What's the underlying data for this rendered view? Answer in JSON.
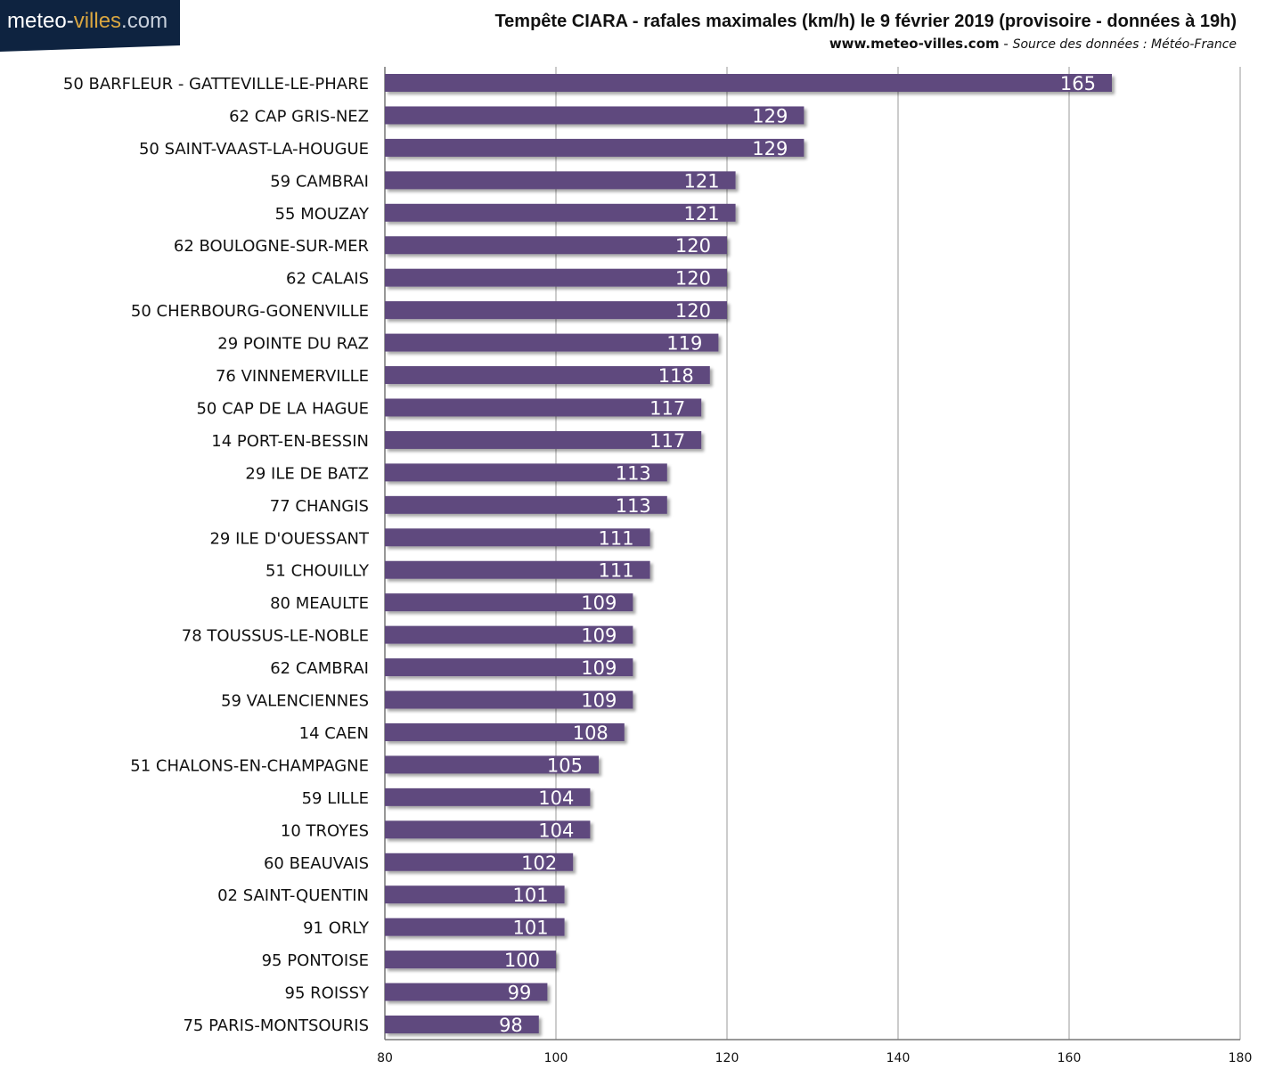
{
  "logo": {
    "part1": "meteo-",
    "part2": "villes",
    "part3": ".com"
  },
  "header": {
    "site": "www.meteo-villes.com",
    "separator": " - ",
    "source": "Source des données : Météo-France"
  },
  "chart_data": {
    "type": "bar",
    "orientation": "horizontal",
    "title": "Tempête CIARA - rafales maximales (km/h) le 9 février 2019 (provisoire - données à 19h)",
    "xlabel": "",
    "ylabel": "",
    "xlim": [
      80,
      180
    ],
    "xticks": [
      80,
      100,
      120,
      140,
      160,
      180
    ],
    "grid": true,
    "bar_color": "#5e4a7e",
    "categories": [
      "50 BARFLEUR - GATTEVILLE-LE-PHARE",
      "62 CAP GRIS-NEZ",
      "50 SAINT-VAAST-LA-HOUGUE",
      "59 CAMBRAI",
      "55 MOUZAY",
      "62 BOULOGNE-SUR-MER",
      "62 CALAIS",
      "50 CHERBOURG-GONENVILLE",
      "29 POINTE DU RAZ",
      "76 VINNEMERVILLE",
      "50 CAP DE LA HAGUE",
      "14 PORT-EN-BESSIN",
      "29 ILE DE BATZ",
      "77 CHANGIS",
      "29 ILE D'OUESSANT",
      "51 CHOUILLY",
      "80 MEAULTE",
      "78 TOUSSUS-LE-NOBLE",
      "62 CAMBRAI",
      "59 VALENCIENNES",
      "14 CAEN",
      "51 CHALONS-EN-CHAMPAGNE",
      "59 LILLE",
      "10 TROYES",
      "60 BEAUVAIS",
      "02 SAINT-QUENTIN",
      "91 ORLY",
      "95 PONTOISE",
      "95 ROISSY",
      "75 PARIS-MONTSOURIS"
    ],
    "values": [
      165,
      129,
      129,
      121,
      121,
      120,
      120,
      120,
      119,
      118,
      117,
      117,
      113,
      113,
      111,
      111,
      109,
      109,
      109,
      109,
      108,
      105,
      104,
      104,
      102,
      101,
      101,
      100,
      99,
      98
    ]
  }
}
